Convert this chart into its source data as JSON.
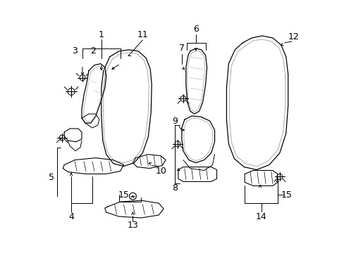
{
  "bg_color": "#ffffff",
  "line_color": "#000000",
  "gray_color": "#aaaaaa",
  "fig_width": 4.89,
  "fig_height": 3.6,
  "dpi": 100
}
